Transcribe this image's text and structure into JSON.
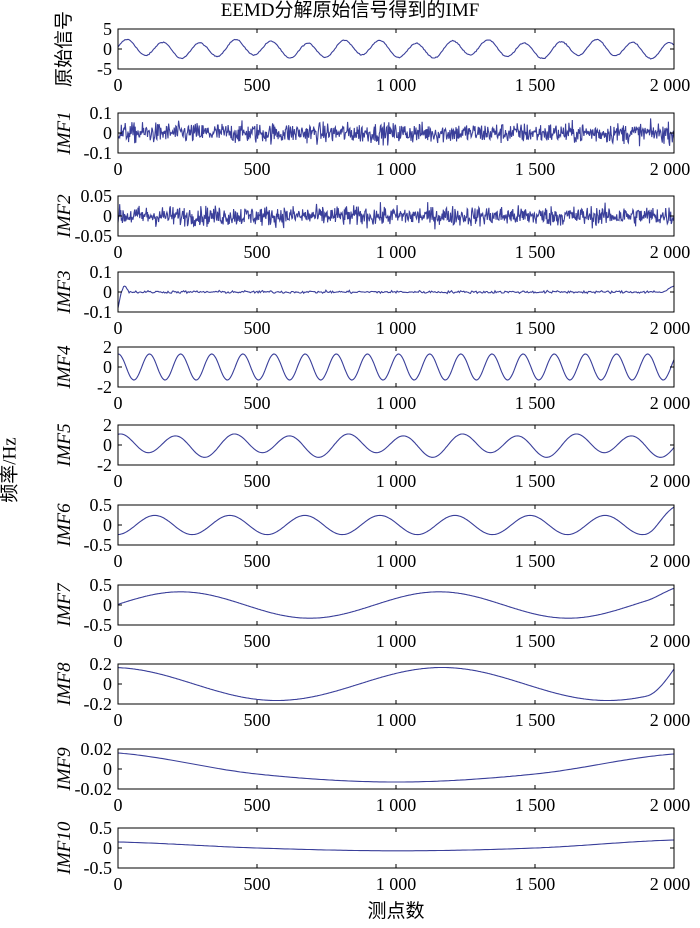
{
  "title": "EEMD分解原始信号得到的IMF",
  "xlabel": "测点数",
  "shared_ylabel": "频率/Hz",
  "colors": {
    "line": "#3a3f9a",
    "axis": "#000000"
  },
  "chart_data": [
    {
      "type": "line",
      "ylabel": "原始信号",
      "ylabel_italic": false,
      "xlim": [
        0,
        2000
      ],
      "ylim": [
        -5,
        5
      ],
      "yticks": [
        "5",
        "0",
        "-5"
      ],
      "ytick_values": [
        5,
        0,
        -5
      ],
      "xticks": [
        "0",
        "500",
        "1 000",
        "1 500",
        "2 000"
      ],
      "xtick_values": [
        0,
        500,
        1000,
        1500,
        2000
      ],
      "series": [
        {
          "x": [
            0,
            2000
          ],
          "components": [
            {
              "amp": 1.9,
              "period": 130,
              "phase": 0
            },
            {
              "amp": 0.5,
              "period": 420,
              "phase": 1.1
            }
          ],
          "noise": 0.12
        }
      ]
    },
    {
      "type": "line",
      "ylabel": "IMF1",
      "ylabel_italic": true,
      "xlim": [
        0,
        2000
      ],
      "ylim": [
        -0.1,
        0.1
      ],
      "yticks": [
        "0.1",
        "0",
        "-0.1"
      ],
      "ytick_values": [
        0.1,
        0,
        -0.1
      ],
      "xticks": [
        "0",
        "500",
        "1 000",
        "1 500",
        "2 000"
      ],
      "xtick_values": [
        0,
        500,
        1000,
        1500,
        2000
      ],
      "series": [
        {
          "x": [
            0,
            2000
          ],
          "components": [],
          "noise": 0.045
        }
      ]
    },
    {
      "type": "line",
      "ylabel": "IMF2",
      "ylabel_italic": true,
      "xlim": [
        0,
        2000
      ],
      "ylim": [
        -0.05,
        0.05
      ],
      "yticks": [
        "0.05",
        "0",
        "-0.05"
      ],
      "ytick_values": [
        0.05,
        0,
        -0.05
      ],
      "xticks": [
        "0",
        "500",
        "1 000",
        "1 500",
        "2 000"
      ],
      "xtick_values": [
        0,
        500,
        1000,
        1500,
        2000
      ],
      "series": [
        {
          "x": [
            0,
            2000
          ],
          "components": [],
          "noise": 0.022
        }
      ]
    },
    {
      "type": "line",
      "ylabel": "IMF3",
      "ylabel_italic": true,
      "xlim": [
        0,
        2000
      ],
      "ylim": [
        -0.1,
        0.1
      ],
      "yticks": [
        "0.1",
        "0",
        "-0.1"
      ],
      "ytick_values": [
        0.1,
        0,
        -0.1
      ],
      "xticks": [
        "0",
        "500",
        "1 000",
        "1 500",
        "2 000"
      ],
      "xtick_values": [
        0,
        500,
        1000,
        1500,
        2000
      ],
      "series": [
        {
          "x": [
            0,
            2000
          ],
          "components": [],
          "noise": 0.006,
          "start": -0.08,
          "start_peak": 0.03,
          "end": 0.03,
          "end_dip": -0.02
        }
      ]
    },
    {
      "type": "line",
      "ylabel": "IMF4",
      "ylabel_italic": true,
      "xlim": [
        0,
        2000
      ],
      "ylim": [
        -2,
        2
      ],
      "yticks": [
        "2",
        "0",
        "-2"
      ],
      "ytick_values": [
        2,
        0,
        -2
      ],
      "xticks": [
        "0",
        "500",
        "1 000",
        "1 500",
        "2 000"
      ],
      "xtick_values": [
        0,
        500,
        1000,
        1500,
        2000
      ],
      "series": [
        {
          "x": [
            0,
            2000
          ],
          "components": [
            {
              "amp": 1.3,
              "period": 112,
              "phase": 1.5
            }
          ],
          "noise": 0.0
        }
      ]
    },
    {
      "type": "line",
      "ylabel": "IMF5",
      "ylabel_italic": true,
      "xlim": [
        0,
        2000
      ],
      "ylim": [
        -2,
        2
      ],
      "yticks": [
        "2",
        "0",
        "-2"
      ],
      "ytick_values": [
        2,
        0,
        -2
      ],
      "xticks": [
        "0",
        "500",
        "1 000",
        "1 500",
        "2 000"
      ],
      "xtick_values": [
        0,
        500,
        1000,
        1500,
        2000
      ],
      "series": [
        {
          "x": [
            0,
            2000
          ],
          "components": [
            {
              "amp": 1.0,
              "period": 205,
              "phase": 1.4
            },
            {
              "amp": 0.25,
              "period": 410,
              "phase": 0.3
            }
          ],
          "noise": 0.0
        }
      ]
    },
    {
      "type": "line",
      "ylabel": "IMF6",
      "ylabel_italic": true,
      "xlim": [
        0,
        2000
      ],
      "ylim": [
        -0.5,
        0.5
      ],
      "yticks": [
        "0.5",
        "0",
        "-0.5"
      ],
      "ytick_values": [
        0.5,
        0,
        -0.5
      ],
      "xticks": [
        "0",
        "500",
        "1 000",
        "1 500",
        "2 000"
      ],
      "xtick_values": [
        0,
        500,
        1000,
        1500,
        2000
      ],
      "series": [
        {
          "x": [
            0,
            2000
          ],
          "components": [
            {
              "amp": 0.24,
              "period": 270,
              "phase": -1.5
            }
          ],
          "noise": 0.0,
          "end": 0.45
        }
      ]
    },
    {
      "type": "line",
      "ylabel": "IMF7",
      "ylabel_italic": true,
      "xlim": [
        0,
        2000
      ],
      "ylim": [
        -0.5,
        0.5
      ],
      "yticks": [
        "0.5",
        "0",
        "-0.5"
      ],
      "ytick_values": [
        0.5,
        0,
        -0.5
      ],
      "xticks": [
        "0",
        "500",
        "1 000",
        "1 500",
        "2 000"
      ],
      "xtick_values": [
        0,
        500,
        1000,
        1500,
        2000
      ],
      "series": [
        {
          "x": [
            0,
            2000
          ],
          "components": [
            {
              "amp": 0.33,
              "period": 930,
              "phase": 0.05
            }
          ],
          "noise": 0.0,
          "end": 0.42
        }
      ]
    },
    {
      "type": "line",
      "ylabel": "IMF8",
      "ylabel_italic": true,
      "xlim": [
        0,
        2000
      ],
      "ylim": [
        -0.2,
        0.2
      ],
      "yticks": [
        "0.2",
        "0",
        "-0.2"
      ],
      "ytick_values": [
        0.2,
        0,
        -0.2
      ],
      "xticks": [
        "0",
        "500",
        "1 000",
        "1 500",
        "2 000"
      ],
      "xtick_values": [
        0,
        500,
        1000,
        1500,
        2000
      ],
      "series": [
        {
          "x": [
            0,
            2000
          ],
          "components": [
            {
              "amp": 0.165,
              "period": 1190,
              "phase": 1.7
            }
          ],
          "noise": 0.0,
          "end": 0.15
        }
      ]
    },
    {
      "type": "line",
      "ylabel": "IMF9",
      "ylabel_italic": true,
      "xlim": [
        0,
        2000
      ],
      "ylim": [
        -0.02,
        0.02
      ],
      "yticks": [
        "0.02",
        "0",
        "-0.02"
      ],
      "ytick_values": [
        0.02,
        0,
        -0.02
      ],
      "xticks": [
        "0",
        "500",
        "1 000",
        "1 500",
        "2 000"
      ],
      "xtick_values": [
        0,
        500,
        1000,
        1500,
        2000
      ],
      "series": [
        {
          "x": [
            0,
            2000
          ],
          "points": [
            [
              0,
              0.016
            ],
            [
              500,
              -0.005
            ],
            [
              1000,
              -0.013
            ],
            [
              1500,
              -0.005
            ],
            [
              2000,
              0.015
            ]
          ]
        }
      ]
    },
    {
      "type": "line",
      "ylabel": "IMF10",
      "ylabel_italic": true,
      "xlim": [
        0,
        2000
      ],
      "ylim": [
        -0.5,
        0.5
      ],
      "yticks": [
        "0.5",
        "0",
        "-0.5"
      ],
      "ytick_values": [
        0.5,
        0,
        -0.5
      ],
      "xticks": [
        "0",
        "500",
        "1 000",
        "1 500",
        "2 000"
      ],
      "xtick_values": [
        0,
        500,
        1000,
        1500,
        2000
      ],
      "series": [
        {
          "x": [
            0,
            2000
          ],
          "points": [
            [
              0,
              0.15
            ],
            [
              500,
              0.0
            ],
            [
              1000,
              -0.07
            ],
            [
              1500,
              0.0
            ],
            [
              2000,
              0.2
            ]
          ]
        }
      ]
    }
  ]
}
